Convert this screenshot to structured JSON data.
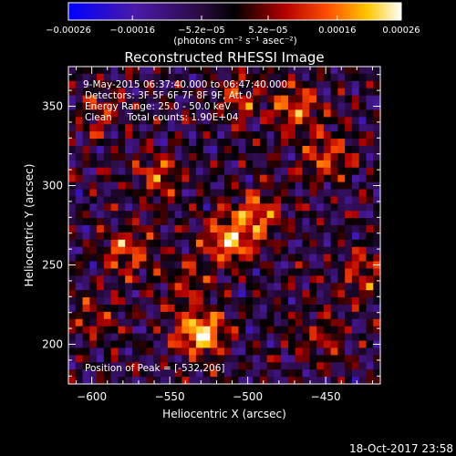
{
  "chart_data": {
    "type": "heatmap",
    "title": "Reconstructed RHESSI Image",
    "xlabel": "Heliocentric X (arcsec)",
    "ylabel": "Heliocentric Y (arcsec)",
    "xlim": [
      -615,
      -415
    ],
    "ylim": [
      175,
      375
    ],
    "xticks": [
      "-600",
      "-550",
      "-500",
      "-450"
    ],
    "yticks": [
      "200",
      "250",
      "300",
      "350"
    ],
    "colorbar": {
      "label": "(photons cm⁻² s⁻¹ asec⁻²)",
      "range": [
        -0.00026,
        0.00026
      ],
      "ticks": [
        "-0.00026",
        "-0.00016",
        "-5.2e-05",
        "5.2e-05",
        "0.00016",
        "0.00026"
      ]
    },
    "annotations": {
      "time_range": "9-May-2015 06:37:40.000 to 06:47:40.000",
      "detectors": "Detectors: 3F 5F 6F 7F 8F 9F, Att 0",
      "energy": "Energy Range: 25.0 - 50.0 keV",
      "clean": "Clean     Total counts: 1.90E+04",
      "peak": "Position of Peak = [-532,206]"
    },
    "sources": [
      {
        "x": -530,
        "y": 208,
        "intensity": 0.00026
      },
      {
        "x": -512,
        "y": 265,
        "intensity": 0.0002
      },
      {
        "x": -493,
        "y": 282,
        "intensity": 0.00018
      },
      {
        "x": -578,
        "y": 258,
        "intensity": 0.00017
      },
      {
        "x": -558,
        "y": 305,
        "intensity": 0.00014
      },
      {
        "x": -470,
        "y": 348,
        "intensity": 0.00016
      },
      {
        "x": -448,
        "y": 318,
        "intensity": 0.00015
      },
      {
        "x": -425,
        "y": 245,
        "intensity": 0.00013
      },
      {
        "x": -505,
        "y": 356,
        "intensity": 0.00012
      },
      {
        "x": -595,
        "y": 345,
        "intensity": 0.0001
      },
      {
        "x": -598,
        "y": 215,
        "intensity": 0.0001
      },
      {
        "x": -455,
        "y": 205,
        "intensity": 0.00011
      },
      {
        "x": -540,
        "y": 240,
        "intensity": 9e-05
      }
    ]
  },
  "footer": {
    "timestamp": "18-Oct-2017 23:58"
  }
}
